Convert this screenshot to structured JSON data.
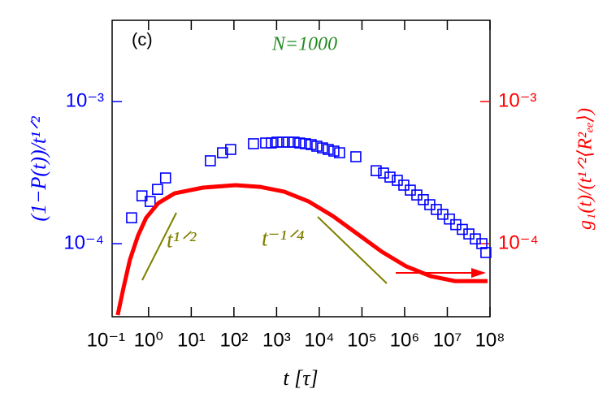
{
  "chart_data": {
    "type": "scatter",
    "panel": "(c)",
    "title": "N=1000",
    "xlabel": "t [τ]",
    "ylabel": "(1−P(t))/t¹ᐟ²",
    "y2label": "g₁(t)/(t¹ᐟ²⟨R²ₑₑ⟩)",
    "log_x": true,
    "log_y": true,
    "xlim": [
      0.14,
      100000000
    ],
    "ylim": [
      3.06e-05,
      0.00373
    ],
    "y2lim": [
      3.06e-05,
      0.00373
    ],
    "xticks": [
      {
        "value": 0.1,
        "label": "10⁻¹"
      },
      {
        "value": 1,
        "label": "10⁰"
      },
      {
        "value": 10,
        "label": "10¹"
      },
      {
        "value": 100,
        "label": "10²"
      },
      {
        "value": 1000,
        "label": "10³"
      },
      {
        "value": 10000,
        "label": "10⁴"
      },
      {
        "value": 100000,
        "label": "10⁵"
      },
      {
        "value": 1000000,
        "label": "10⁶"
      },
      {
        "value": 10000000,
        "label": "10⁷"
      },
      {
        "value": 100000000,
        "label": "10⁸"
      }
    ],
    "yticks": [
      {
        "value": 0.0001,
        "label": "10⁻⁴"
      },
      {
        "value": 0.001,
        "label": "10⁻³"
      }
    ],
    "y2ticks": [
      {
        "value": 0.0001,
        "label": "10⁻⁴"
      },
      {
        "value": 0.001,
        "label": "10⁻³"
      }
    ],
    "annotations": [
      "t¹ᐟ²",
      "t⁻¹ᐟ⁴"
    ],
    "series": [
      {
        "color": "#0000ff",
        "marker": "square",
        "x": [
          0.4,
          0.7,
          1.09,
          1.62,
          2.5,
          28,
          54,
          84,
          287,
          554,
          752,
          1022,
          1390,
          1888,
          2570,
          3490,
          4745,
          6450,
          8770,
          11900,
          16200,
          22000,
          29900,
          71900,
          215000,
          320000,
          454000,
          674000,
          957000,
          1360000,
          1930000,
          2740000,
          3890000,
          5530000,
          7850000,
          11200000,
          15800000,
          22500000,
          32000000,
          45400000,
          64500000,
          80000000
        ],
        "values": [
          0.000152,
          0.000217,
          0.000198,
          0.000241,
          0.00029,
          0.000383,
          0.000436,
          0.00046,
          0.000505,
          0.000511,
          0.000511,
          0.000518,
          0.000518,
          0.000518,
          0.000518,
          0.000511,
          0.000505,
          0.000498,
          0.000485,
          0.000472,
          0.00046,
          0.000448,
          0.000436,
          0.000409,
          0.000326,
          0.000314,
          0.000294,
          0.000279,
          0.000258,
          0.000238,
          0.00022,
          0.000204,
          0.000188,
          0.000174,
          0.000161,
          0.000149,
          0.000136,
          0.000126,
          0.000117,
          0.000108,
          0.0001,
          8.66e-05
        ]
      },
      {
        "color": "#ff0000",
        "axis": "y2",
        "line": true,
        "x": [
          0.189,
          0.257,
          0.365,
          0.566,
          0.877,
          1.69,
          4.07,
          18.9,
          109,
          407,
          1520,
          5650,
          21100,
          78500,
          293000,
          1090000,
          4070000,
          15200000,
          87700000
        ],
        "values": [
          3.14e-05,
          4.85e-05,
          7.69e-05,
          0.000114,
          0.000152,
          0.000193,
          0.000226,
          0.000248,
          0.000258,
          0.000251,
          0.000232,
          0.000198,
          0.000156,
          0.000117,
          8.77e-05,
          6.92e-05,
          5.9e-05,
          5.45e-05,
          5.45e-05
        ]
      }
    ]
  }
}
